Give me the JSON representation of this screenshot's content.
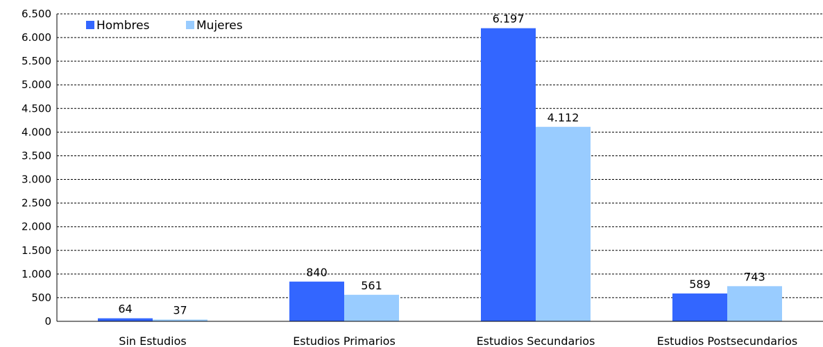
{
  "chart_data": {
    "type": "bar",
    "categories": [
      "Sin Estudios",
      "Estudios Primarios",
      "Estudios Secundarios",
      "Estudios Postsecundarios"
    ],
    "series": [
      {
        "name": "Hombres",
        "values": [
          64,
          840,
          6197,
          589
        ],
        "labels": [
          "64",
          "840",
          "6.197",
          "589"
        ],
        "color": "#3366ff"
      },
      {
        "name": "Mujeres",
        "values": [
          37,
          561,
          4112,
          743
        ],
        "labels": [
          "37",
          "561",
          "4.112",
          "743"
        ],
        "color": "#99ccff"
      }
    ],
    "ylim": [
      0,
      6500
    ],
    "yticks": [
      0,
      500,
      1000,
      1500,
      2000,
      2500,
      3000,
      3500,
      4000,
      4500,
      5000,
      5500,
      6000,
      6500
    ],
    "ytick_labels": [
      "0",
      "500",
      "1.000",
      "1.500",
      "2.000",
      "2.500",
      "3.000",
      "3.500",
      "4.000",
      "4.500",
      "5.000",
      "5.500",
      "6.000",
      "6.500"
    ],
    "grid": true,
    "legend": "top-left",
    "title": "",
    "xlabel": "",
    "ylabel": ""
  }
}
